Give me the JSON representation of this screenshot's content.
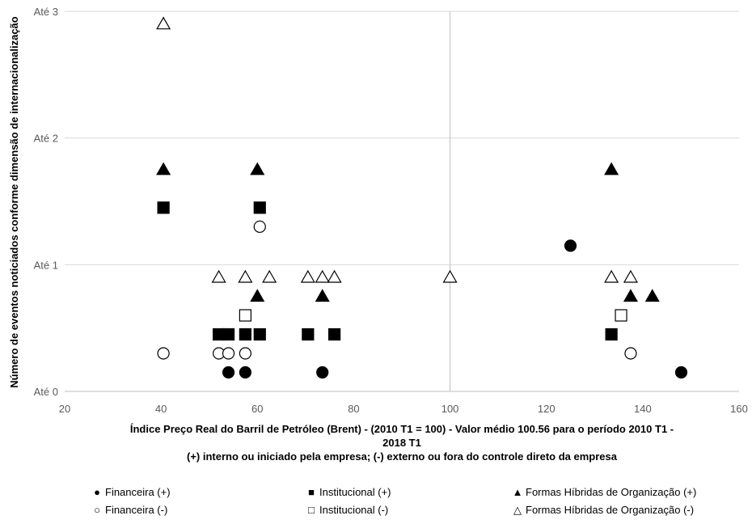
{
  "chart_data": {
    "type": "scatter",
    "xlabel": "Índice Preço Real do Barril de Petróleo (Brent) - (2010 T1 = 100) - Valor médio 100.56 para o período 2010 T1 - 2018 T1",
    "xlabel_lines": [
      "Índice Preço Real do Barril de Petróleo (Brent) - (2010 T1 = 100) - Valor médio 100.56 para o período 2010 T1 -",
      "2018 T1"
    ],
    "subtitle": "(+) interno ou iniciado pela empresa; (-) externo ou fora do controle direto da empresa",
    "ylabel": "Número de eventos noticiados conforme dimensão de internacionalização",
    "xlim": [
      20,
      160
    ],
    "ylim": [
      0,
      3
    ],
    "x_ticks": [
      20,
      40,
      60,
      80,
      100,
      120,
      140,
      160
    ],
    "y_ticks": [
      {
        "value": 0,
        "label": "Até 0"
      },
      {
        "value": 1,
        "label": "Até 1"
      },
      {
        "value": 2,
        "label": "Até 2"
      },
      {
        "value": 3,
        "label": "Até 3"
      }
    ],
    "reference_line_x": 100,
    "grid": "horizontal",
    "legend_position": "bottom",
    "series": [
      {
        "name": "Financeira (+)",
        "marker": "filled-circle",
        "points": [
          [
            54,
            0.15
          ],
          [
            57.5,
            0.15
          ],
          [
            73.5,
            0.15
          ],
          [
            125,
            1.15
          ],
          [
            148,
            0.15
          ]
        ]
      },
      {
        "name": "Institucional (+)",
        "marker": "filled-square",
        "points": [
          [
            40.5,
            1.45
          ],
          [
            60.5,
            1.45
          ],
          [
            52,
            0.45
          ],
          [
            54,
            0.45
          ],
          [
            57.5,
            0.45
          ],
          [
            60.5,
            0.45
          ],
          [
            70.5,
            0.45
          ],
          [
            76,
            0.45
          ],
          [
            133.5,
            0.45
          ]
        ]
      },
      {
        "name": "Formas Híbridas de Organização (+)",
        "marker": "filled-triangle",
        "points": [
          [
            40.5,
            1.75
          ],
          [
            60,
            1.75
          ],
          [
            60,
            0.75
          ],
          [
            73.5,
            0.75
          ],
          [
            133.5,
            1.75
          ],
          [
            137.5,
            0.75
          ],
          [
            142,
            0.75
          ]
        ]
      },
      {
        "name": "Financeira (-)",
        "marker": "open-circle",
        "points": [
          [
            40.5,
            0.3
          ],
          [
            52,
            0.3
          ],
          [
            54,
            0.3
          ],
          [
            57.5,
            0.3
          ],
          [
            60.5,
            1.3
          ],
          [
            137.5,
            0.3
          ]
        ]
      },
      {
        "name": "Institucional (-)",
        "marker": "open-square",
        "points": [
          [
            57.5,
            0.6
          ],
          [
            135.5,
            0.6
          ]
        ]
      },
      {
        "name": "Formas Híbridas de Organização (-)",
        "marker": "open-triangle",
        "points": [
          [
            40.5,
            2.9
          ],
          [
            52,
            0.9
          ],
          [
            57.5,
            0.9
          ],
          [
            62.5,
            0.9
          ],
          [
            70.5,
            0.9
          ],
          [
            73.5,
            0.9
          ],
          [
            76,
            0.9
          ],
          [
            100,
            0.9
          ],
          [
            133.5,
            0.9
          ],
          [
            137.5,
            0.9
          ]
        ]
      }
    ]
  },
  "legend_symbols": {
    "filled-circle": "●",
    "filled-square": "■",
    "filled-triangle": "▲",
    "open-circle": "○",
    "open-square": "□",
    "open-triangle": "△"
  }
}
